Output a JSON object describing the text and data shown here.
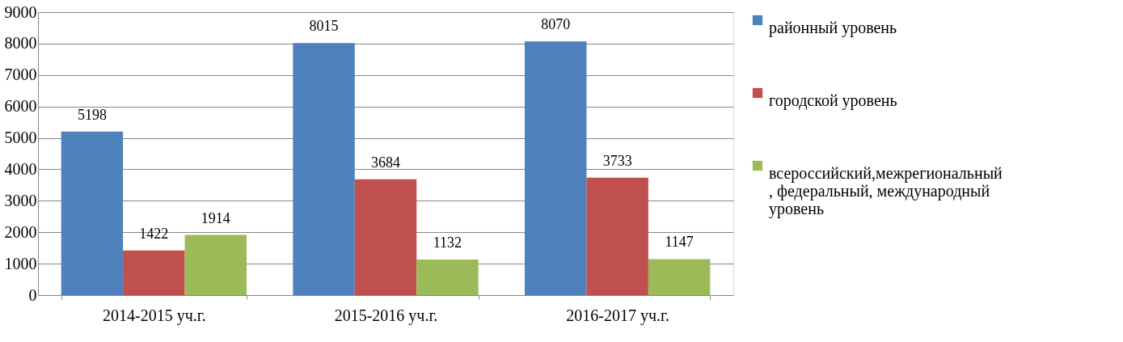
{
  "chart_data": {
    "type": "bar",
    "categories": [
      "2014-2015 уч.г.",
      "2015-2016 уч.г.",
      "2016-2017 уч.г."
    ],
    "series": [
      {
        "name": "районный уровень",
        "color": "#4f81bd",
        "values": [
          5198,
          8015,
          8070
        ]
      },
      {
        "name": "городской уровень",
        "color": "#c0504d",
        "values": [
          1422,
          3684,
          3733
        ]
      },
      {
        "name": "всероссийский,межрегиональный , федеральный, международный уровень",
        "color": "#9bbb59",
        "values": [
          1914,
          1132,
          1147
        ]
      }
    ],
    "ylim": [
      0,
      9000
    ],
    "yticks": [
      0,
      1000,
      2000,
      3000,
      4000,
      5000,
      6000,
      7000,
      8000,
      9000
    ],
    "grid": "y",
    "legend": "right",
    "data_labels": true
  }
}
